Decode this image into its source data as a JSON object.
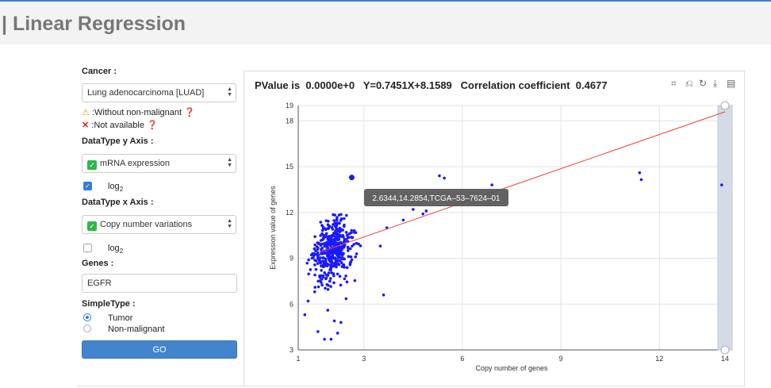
{
  "header": {
    "title": "| Linear Regression"
  },
  "form": {
    "cancer_label": "Cancer :",
    "cancer_value": "Lung adenocarcinoma [LUAD]",
    "legend_warning": ":Without non-malignant",
    "legend_unavailable": ":Not available",
    "y_label": "DataType y Axis :",
    "y_value": "mRNA expression",
    "y_log": "log",
    "y_log_sub": "2",
    "x_label": "DataType x Axis :",
    "x_value": "Copy number variations",
    "x_log": "log",
    "x_log_sub": "2",
    "genes_label": "Genes :",
    "genes_value": "EGFR",
    "sample_label": "SimpleType :",
    "opt_tumor": "Tumor",
    "opt_normal": "Non-malignant",
    "go_label": "GO"
  },
  "stats": {
    "text": "PValue is  0.0000e+0   Y=0.7451X+8.1589   Correlation coefficient  0.4677"
  },
  "colors": {
    "points": "#1a1aff",
    "line": "#e8423a",
    "accent": "#4285cc"
  },
  "chart_data": {
    "type": "scatter",
    "xlabel": "Copy number of genes",
    "ylabel": "Expression value of genes",
    "xlim": [
      1,
      14
    ],
    "ylim": [
      3,
      19
    ],
    "xticks": [
      "1",
      "3",
      "6",
      "9",
      "12",
      "14"
    ],
    "yticks": [
      "3",
      "6",
      "9",
      "12",
      "15",
      "18",
      "19"
    ],
    "regression": {
      "slope": 0.7451,
      "intercept": 8.1589
    },
    "tooltip": "2.6344,14.2854,TCGA–53–7624–01",
    "highlight": [
      2.63,
      14.29
    ],
    "outliers": [
      [
        5.3,
        14.4
      ],
      [
        5.45,
        14.25
      ],
      [
        6.9,
        13.8
      ],
      [
        11.4,
        14.6
      ],
      [
        11.45,
        14.15
      ],
      [
        13.9,
        13.8
      ],
      [
        3.6,
        6.6
      ],
      [
        3.5,
        9.8
      ],
      [
        3.7,
        11
      ],
      [
        4.2,
        11.5
      ],
      [
        4.5,
        12.2
      ],
      [
        4.8,
        11.9
      ],
      [
        4.9,
        12.1
      ],
      [
        1.2,
        5.3
      ],
      [
        1.6,
        4.2
      ],
      [
        1.8,
        3.7
      ],
      [
        2.0,
        3.7
      ],
      [
        2.2,
        4.1
      ],
      [
        2.3,
        4.8
      ],
      [
        2.1,
        4.9
      ],
      [
        1.9,
        5.6
      ],
      [
        1.3,
        6.2
      ],
      [
        1.5,
        6.8
      ]
    ]
  }
}
